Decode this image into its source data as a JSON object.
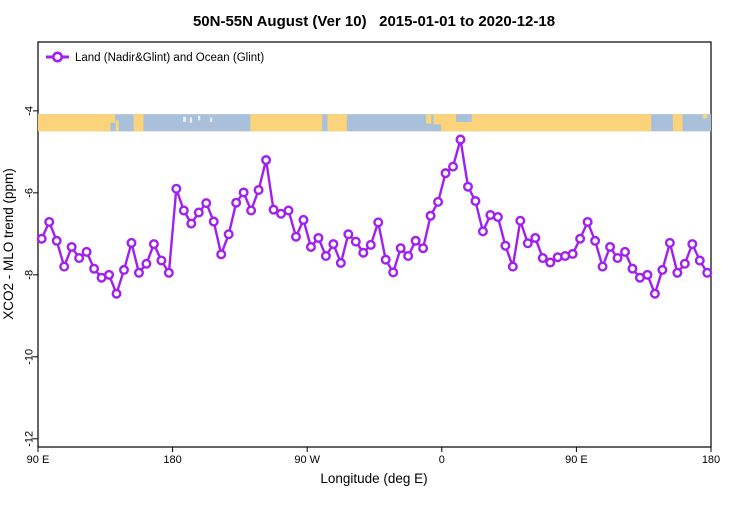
{
  "chart_data": {
    "type": "line",
    "title": "50N-55N August (Ver 10)   2015-01-01 to 2020-12-18",
    "xlabel": "Longitude (deg E)",
    "ylabel": "XCO2 - MLO trend (ppm)",
    "legend": [
      "Land (Nadir&Glint) and Ocean (Glint)"
    ],
    "legend_position": "top-left-inside",
    "grid": false,
    "xlim": [
      90,
      540
    ],
    "ylim": [
      -12.2,
      -2.32
    ],
    "xticks": [
      {
        "value": 90,
        "label": "90 E"
      },
      {
        "value": 180,
        "label": "180"
      },
      {
        "value": 270,
        "label": "90 W"
      },
      {
        "value": 360,
        "label": "0"
      },
      {
        "value": 450,
        "label": "90 E"
      },
      {
        "value": 540,
        "label": "180"
      }
    ],
    "yticks": [
      {
        "value": -4,
        "label": "-4"
      },
      {
        "value": -6,
        "label": "-6"
      },
      {
        "value": -8,
        "label": "-8"
      },
      {
        "value": -10,
        "label": "-10"
      },
      {
        "value": -12,
        "label": "-12"
      }
    ],
    "series": [
      {
        "name": "Land (Nadir&Glint) and Ocean (Glint)",
        "color": "#A020F0",
        "marker": "open-circle",
        "x": [
          92.5,
          97.5,
          102.5,
          107.5,
          112.5,
          117.5,
          122.5,
          127.5,
          132.5,
          137.5,
          142.5,
          147.5,
          152.5,
          157.5,
          162.5,
          167.5,
          172.5,
          177.5,
          182.5,
          187.5,
          192.5,
          197.5,
          202.5,
          207.5,
          212.5,
          217.5,
          222.5,
          227.5,
          232.5,
          237.5,
          242.5,
          247.5,
          252.5,
          257.5,
          262.5,
          267.5,
          272.5,
          277.5,
          282.5,
          287.5,
          292.5,
          297.5,
          302.5,
          307.5,
          312.5,
          317.5,
          322.5,
          327.5,
          332.5,
          337.5,
          342.5,
          347.5,
          352.5,
          357.5,
          362.5,
          367.5,
          372.5,
          377.5,
          382.5,
          387.5,
          392.5,
          397.5,
          402.5,
          407.5,
          412.5,
          417.5,
          422.5,
          427.5,
          432.5,
          437.5,
          442.5,
          447.5,
          452.5,
          457.5,
          462.5,
          467.5,
          472.5,
          477.5,
          482.5,
          487.5,
          492.5,
          497.5,
          502.5,
          507.5,
          512.5,
          517.5,
          522.5,
          527.5,
          532.5,
          537.5
        ],
        "y": [
          -7.12,
          -6.71,
          -7.17,
          -7.8,
          -7.32,
          -7.59,
          -7.44,
          -7.85,
          -8.07,
          -8.0,
          -8.46,
          -7.88,
          -7.22,
          -7.95,
          -7.73,
          -7.25,
          -7.65,
          -7.95,
          -5.9,
          -6.43,
          -6.75,
          -6.48,
          -6.25,
          -6.7,
          -7.5,
          -7.01,
          -6.24,
          -5.99,
          -6.43,
          -5.93,
          -5.2,
          -6.41,
          -6.51,
          -6.43,
          -7.07,
          -6.66,
          -7.32,
          -7.1,
          -7.54,
          -7.25,
          -7.71,
          -7.01,
          -7.19,
          -7.46,
          -7.27,
          -6.72,
          -7.63,
          -7.94,
          -7.35,
          -7.54,
          -7.17,
          -7.35,
          -6.56,
          -6.22,
          -5.52,
          -5.36,
          -4.7,
          -5.85,
          -6.2,
          -6.94,
          -6.54,
          -6.59,
          -7.29,
          -7.8,
          -6.68,
          -7.23,
          -7.1,
          -7.59,
          -7.7,
          -7.57,
          -7.54,
          -7.49,
          -7.12,
          -6.71,
          -7.17,
          -7.8,
          -7.32,
          -7.59,
          -7.44,
          -7.85,
          -8.07,
          -8.0,
          -8.46,
          -7.88,
          -7.22,
          -7.95,
          -7.73,
          -7.25,
          -7.65,
          -7.95
        ]
      }
    ],
    "map_strip": {
      "description": "land-ocean strip for 50N-55N latitude band",
      "band_top_value": -4.08,
      "band_bottom_value": -4.5,
      "ocean_color": "#A9C0DB",
      "land_color": "#FBD37B",
      "speck_color": "#E9EEF6",
      "land_segments": [
        {
          "from": 90,
          "to": 138.5,
          "top": 0,
          "bottom": 1
        },
        {
          "from": 138.5,
          "to": 141.5,
          "top": 0,
          "bottom": 0.5
        },
        {
          "from": 142,
          "to": 144,
          "top": 0.35,
          "bottom": 1
        },
        {
          "from": 154,
          "to": 160.5,
          "top": 0,
          "bottom": 1
        },
        {
          "from": 232,
          "to": 280,
          "top": 0,
          "bottom": 1
        },
        {
          "from": 283.5,
          "to": 296.5,
          "top": 0,
          "bottom": 1
        },
        {
          "from": 349.5,
          "to": 353,
          "top": 0,
          "bottom": 0.55
        },
        {
          "from": 354.5,
          "to": 359.5,
          "top": 0,
          "bottom": 0.6
        },
        {
          "from": 359.5,
          "to": 500,
          "top": 0,
          "bottom": 1
        },
        {
          "from": 514.5,
          "to": 521,
          "top": 0,
          "bottom": 1
        },
        {
          "from": 534.5,
          "to": 537.5,
          "top": 0,
          "bottom": 0.25
        }
      ],
      "ocean_overlays": [
        {
          "from": 369.5,
          "to": 380,
          "top": 0,
          "bottom": 0.45
        }
      ],
      "specks": [
        {
          "from": 187,
          "to": 189,
          "top": 0.15,
          "bottom": 0.45
        },
        {
          "from": 191.5,
          "to": 193,
          "top": 0.2,
          "bottom": 0.5
        },
        {
          "from": 197,
          "to": 198.5,
          "top": 0.1,
          "bottom": 0.35
        },
        {
          "from": 205,
          "to": 206.5,
          "top": 0.2,
          "bottom": 0.45
        }
      ]
    },
    "colors": {
      "series_line": "#A020F0",
      "marker_fill": "#FFFFFF",
      "axis": "#000000",
      "background": "#FFFFFF"
    }
  }
}
